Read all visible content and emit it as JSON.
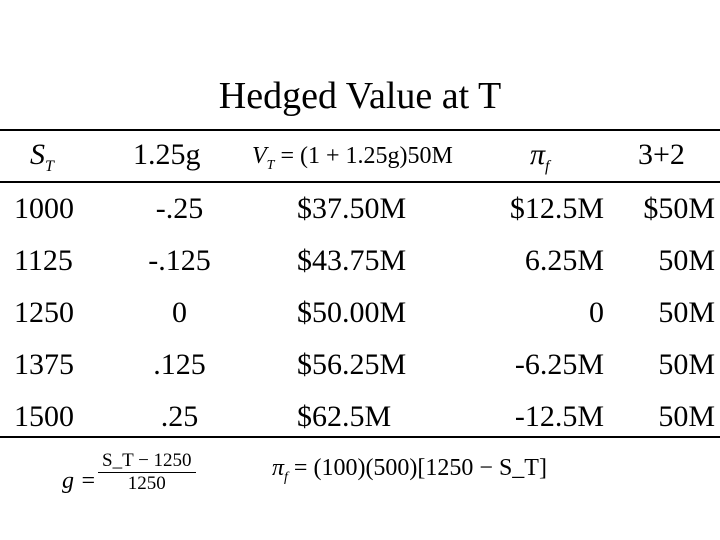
{
  "title": "Hedged Value at T",
  "headers": {
    "c1": "S",
    "c1_sub": "T",
    "c2": "1.25g",
    "c3_lhs": "V",
    "c3_lhs_sub": "T",
    "c3_rhs": "= (1 + 1.25g)50M",
    "c4": "π",
    "c4_sub": "f",
    "c5": "3+2"
  },
  "rows": [
    [
      "1000",
      "-.25",
      "$37.50M",
      "$12.5M",
      "$50M"
    ],
    [
      "1125",
      "-.125",
      "$43.75M",
      "6.25M",
      "50M"
    ],
    [
      "1250",
      "0",
      "$50.00M",
      "0",
      "50M"
    ],
    [
      "1375",
      ".125",
      "$56.25M",
      "-6.25M",
      "50M"
    ],
    [
      "1500",
      ".25",
      "$62.5M",
      "-12.5M",
      "50M"
    ]
  ],
  "formulas": {
    "g_lhs": "g =",
    "g_num": "S_T − 1250",
    "g_den": "1250",
    "pi_lhs": "π",
    "pi_sub": "f",
    "pi_rhs": "= (100)(500)[1250 − S_T]"
  }
}
